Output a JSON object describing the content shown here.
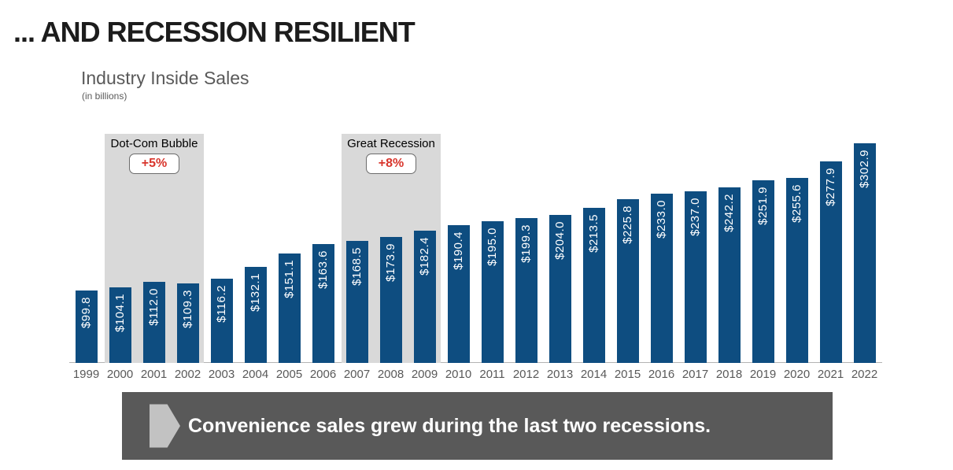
{
  "slide": {
    "title": "... AND RECESSION RESILIENT",
    "background_color": "#ffffff"
  },
  "chart_header": {
    "title": "Industry Inside Sales",
    "units": "(in billions)"
  },
  "banner": {
    "text": "Convenience sales grew during the last two recessions.",
    "background_color": "#595959",
    "text_color": "#ffffff",
    "arrow_icon": "right-pointing-arrow",
    "arrow_color": "#c2c2c2"
  },
  "chart_data": {
    "type": "bar",
    "title": "Industry Inside Sales",
    "units": "(in billions)",
    "categories": [
      "1999",
      "2000",
      "2001",
      "2002",
      "2003",
      "2004",
      "2005",
      "2006",
      "2007",
      "2008",
      "2009",
      "2010",
      "2011",
      "2012",
      "2013",
      "2014",
      "2015",
      "2016",
      "2017",
      "2018",
      "2019",
      "2020",
      "2021",
      "2022"
    ],
    "values": [
      99.8,
      104.1,
      112.0,
      109.3,
      116.2,
      132.1,
      151.1,
      163.6,
      168.5,
      173.9,
      182.4,
      190.4,
      195.0,
      199.3,
      204.0,
      213.5,
      225.8,
      233.0,
      237.0,
      242.2,
      251.9,
      255.6,
      277.9,
      302.9
    ],
    "value_labels": [
      "$99.8",
      "$104.1",
      "$112.0",
      "$109.3",
      "$116.2",
      "$132.1",
      "$151.1",
      "$163.6",
      "$168.5",
      "$173.9",
      "$182.4",
      "$190.4",
      "$195.0",
      "$199.3",
      "$204.0",
      "$213.5",
      "$225.8",
      "$233.0",
      "$237.0",
      "$242.2",
      "$251.9",
      "$255.6",
      "$277.9",
      "$302.9"
    ],
    "bar_color": "#0e4d80",
    "value_label_color": "#ffffff",
    "axis_tick_color": "#595959",
    "axis_line_color": "#b3b3b3",
    "ylim": [
      0,
      320
    ],
    "grid": false,
    "legend": false,
    "annotations": [
      {
        "label": "Dot-Com Bubble",
        "badge": "+5%",
        "start_year": "2000",
        "end_year": "2002",
        "band_color": "#d9d9d9",
        "badge_text_color": "#d8352c"
      },
      {
        "label": "Great Recession",
        "badge": "+8%",
        "start_year": "2007",
        "end_year": "2009",
        "band_color": "#d9d9d9",
        "badge_text_color": "#d8352c"
      }
    ]
  }
}
